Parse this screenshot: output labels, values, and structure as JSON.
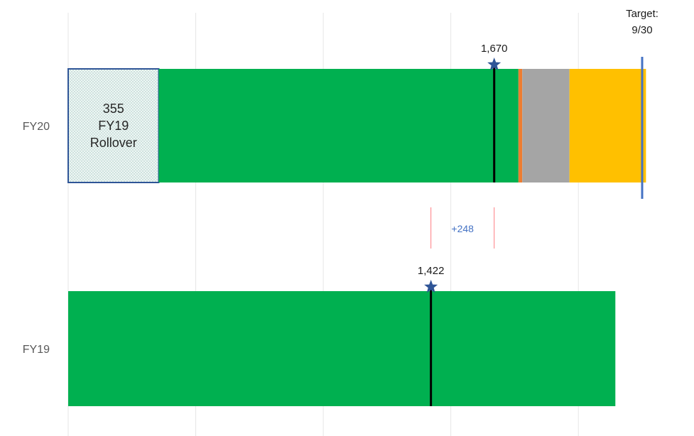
{
  "chart_data": {
    "type": "bar",
    "orientation": "horizontal",
    "stacked": true,
    "categories": [
      "FY20",
      "FY19"
    ],
    "xlim": [
      0,
      2250
    ],
    "grid": true,
    "legend": "none",
    "bars": [
      {
        "category": "FY20",
        "segments": [
          {
            "value": 355,
            "color": "#e4efed",
            "pattern": "dotted",
            "border": "#2f5597",
            "label_lines": [
              "355",
              "FY19",
              "Rollover"
            ]
          },
          {
            "value": 1410,
            "color": "#00b050"
          },
          {
            "value": 15,
            "color": "#ed7d31"
          },
          {
            "value": 185,
            "color": "#a5a5a5"
          },
          {
            "value": 300,
            "color": "#ffc000"
          }
        ],
        "marker": {
          "value": 1670,
          "label": "1,670"
        }
      },
      {
        "category": "FY19",
        "segments": [
          {
            "value": 2145,
            "color": "#00b050"
          }
        ],
        "marker": {
          "value": 1422,
          "label": "1,422"
        }
      }
    ],
    "target": {
      "value": 2250,
      "label_lines": [
        "Target:",
        "9/30"
      ],
      "color": "#4472c4"
    },
    "difference": {
      "label": "+248",
      "color": "#4472c4",
      "bracket_color": "#ff7c80"
    },
    "colors": {
      "marker_star": "#2f5597",
      "marker_line": "#000000",
      "grid": "#e6e6e6",
      "category_label": "#595959"
    }
  }
}
